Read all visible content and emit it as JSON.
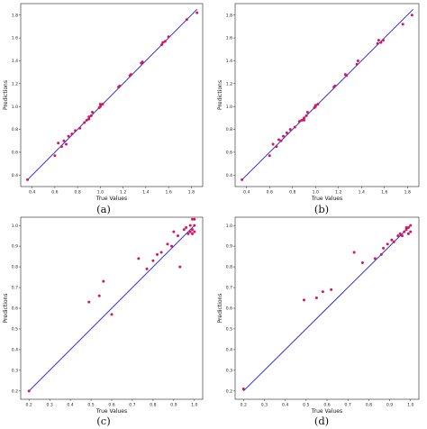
{
  "colors": {
    "line": "#1c1cd9",
    "point": "#d6155f",
    "frame": "#222222"
  },
  "chart_data": [
    {
      "type": "scatter",
      "caption": "(a)",
      "xlabel": "True Values",
      "ylabel": "Predictions",
      "xlim": [
        0.3,
        1.9
      ],
      "ylim": [
        0.3,
        1.9
      ],
      "xticks": [
        "0.4",
        "0.6",
        "0.8",
        "1.0",
        "1.2",
        "1.4",
        "1.6",
        "1.8"
      ],
      "yticks": [
        "0.4",
        "0.6",
        "0.8",
        "1.0",
        "1.2",
        "1.4",
        "1.6",
        "1.8"
      ],
      "xtick_values": [
        0.4,
        0.6,
        0.8,
        1.0,
        1.2,
        1.4,
        1.6,
        1.8
      ],
      "ytick_values": [
        0.4,
        0.6,
        0.8,
        1.0,
        1.2,
        1.4,
        1.6,
        1.8
      ],
      "grid": false,
      "reference_line": [
        [
          0.36,
          0.36
        ],
        [
          1.85,
          1.85
        ]
      ],
      "points": [
        [
          0.36,
          0.36
        ],
        [
          0.6,
          0.57
        ],
        [
          0.63,
          0.68
        ],
        [
          0.66,
          0.65
        ],
        [
          0.68,
          0.7
        ],
        [
          0.7,
          0.67
        ],
        [
          0.72,
          0.74
        ],
        [
          0.75,
          0.76
        ],
        [
          0.78,
          0.79
        ],
        [
          0.82,
          0.81
        ],
        [
          0.86,
          0.86
        ],
        [
          0.88,
          0.88
        ],
        [
          0.9,
          0.89
        ],
        [
          0.9,
          0.91
        ],
        [
          0.92,
          0.92
        ],
        [
          0.93,
          0.95
        ],
        [
          0.99,
          0.99
        ],
        [
          1.0,
          1.0
        ],
        [
          1.0,
          1.02
        ],
        [
          1.02,
          1.02
        ],
        [
          1.16,
          1.17
        ],
        [
          1.17,
          1.18
        ],
        [
          1.26,
          1.27
        ],
        [
          1.27,
          1.28
        ],
        [
          1.36,
          1.38
        ],
        [
          1.37,
          1.39
        ],
        [
          1.54,
          1.54
        ],
        [
          1.55,
          1.56
        ],
        [
          1.57,
          1.57
        ],
        [
          1.6,
          1.61
        ],
        [
          1.76,
          1.76
        ],
        [
          1.85,
          1.82
        ]
      ]
    },
    {
      "type": "scatter",
      "caption": "(b)",
      "xlabel": "True Values",
      "ylabel": "Predictions",
      "xlim": [
        0.3,
        1.9
      ],
      "ylim": [
        0.3,
        1.9
      ],
      "xticks": [
        "0.4",
        "0.6",
        "0.8",
        "1.0",
        "1.2",
        "1.4",
        "1.6",
        "1.8"
      ],
      "yticks": [
        "0.4",
        "0.6",
        "0.8",
        "1.0",
        "1.2",
        "1.4",
        "1.6",
        "1.8"
      ],
      "xtick_values": [
        0.4,
        0.6,
        0.8,
        1.0,
        1.2,
        1.4,
        1.6,
        1.8
      ],
      "ytick_values": [
        0.4,
        0.6,
        0.8,
        1.0,
        1.2,
        1.4,
        1.6,
        1.8
      ],
      "grid": false,
      "reference_line": [
        [
          0.36,
          0.36
        ],
        [
          1.85,
          1.85
        ]
      ],
      "points": [
        [
          0.36,
          0.36
        ],
        [
          0.6,
          0.57
        ],
        [
          0.63,
          0.67
        ],
        [
          0.66,
          0.65
        ],
        [
          0.68,
          0.71
        ],
        [
          0.7,
          0.7
        ],
        [
          0.72,
          0.74
        ],
        [
          0.75,
          0.77
        ],
        [
          0.78,
          0.8
        ],
        [
          0.82,
          0.82
        ],
        [
          0.86,
          0.87
        ],
        [
          0.88,
          0.88
        ],
        [
          0.9,
          0.88
        ],
        [
          0.9,
          0.9
        ],
        [
          0.92,
          0.92
        ],
        [
          0.93,
          0.95
        ],
        [
          0.99,
          0.99
        ],
        [
          1.0,
          1.0
        ],
        [
          1.0,
          1.01
        ],
        [
          1.02,
          1.02
        ],
        [
          1.16,
          1.17
        ],
        [
          1.17,
          1.18
        ],
        [
          1.26,
          1.28
        ],
        [
          1.27,
          1.27
        ],
        [
          1.36,
          1.37
        ],
        [
          1.37,
          1.4
        ],
        [
          1.54,
          1.55
        ],
        [
          1.55,
          1.58
        ],
        [
          1.57,
          1.56
        ],
        [
          1.59,
          1.58
        ],
        [
          1.76,
          1.72
        ],
        [
          1.84,
          1.8
        ]
      ]
    },
    {
      "type": "scatter",
      "caption": "(c)",
      "xlabel": "True Values",
      "ylabel": "Predictions",
      "xlim": [
        0.16,
        1.04
      ],
      "ylim": [
        0.16,
        1.04
      ],
      "xticks": [
        "0.2",
        "0.3",
        "0.4",
        "0.5",
        "0.6",
        "0.7",
        "0.8",
        "0.9",
        "1.0"
      ],
      "yticks": [
        "0.2",
        "0.3",
        "0.4",
        "0.5",
        "0.6",
        "0.7",
        "0.8",
        "0.9",
        "1.0"
      ],
      "xtick_values": [
        0.2,
        0.3,
        0.4,
        0.5,
        0.6,
        0.7,
        0.8,
        0.9,
        1.0
      ],
      "ytick_values": [
        0.2,
        0.3,
        0.4,
        0.5,
        0.6,
        0.7,
        0.8,
        0.9,
        1.0
      ],
      "grid": false,
      "reference_line": [
        [
          0.2,
          0.2
        ],
        [
          1.0,
          1.0
        ]
      ],
      "points": [
        [
          0.2,
          0.2
        ],
        [
          0.49,
          0.63
        ],
        [
          0.54,
          0.66
        ],
        [
          0.56,
          0.73
        ],
        [
          0.6,
          0.57
        ],
        [
          0.73,
          0.84
        ],
        [
          0.77,
          0.79
        ],
        [
          0.8,
          0.83
        ],
        [
          0.82,
          0.86
        ],
        [
          0.84,
          0.87
        ],
        [
          0.87,
          0.91
        ],
        [
          0.89,
          0.9
        ],
        [
          0.9,
          0.97
        ],
        [
          0.92,
          0.95
        ],
        [
          0.93,
          0.8
        ],
        [
          0.95,
          0.98
        ],
        [
          0.96,
          0.99
        ],
        [
          0.97,
          0.96
        ],
        [
          0.98,
          0.97
        ],
        [
          0.98,
          1.0
        ],
        [
          0.99,
          0.96
        ],
        [
          0.99,
          0.98
        ],
        [
          1.0,
          0.97
        ],
        [
          1.0,
          1.0
        ],
        [
          0.99,
          1.03
        ],
        [
          1.0,
          1.03
        ]
      ]
    },
    {
      "type": "scatter",
      "caption": "(d)",
      "xlabel": "True Values",
      "ylabel": "Predictions",
      "xlim": [
        0.16,
        1.04
      ],
      "ylim": [
        0.16,
        1.04
      ],
      "xticks": [
        "0.2",
        "0.3",
        "0.4",
        "0.5",
        "0.6",
        "0.7",
        "0.8",
        "0.9",
        "1.0"
      ],
      "yticks": [
        "0.2",
        "0.3",
        "0.4",
        "0.5",
        "0.6",
        "0.7",
        "0.8",
        "0.9",
        "1.0"
      ],
      "xtick_values": [
        0.2,
        0.3,
        0.4,
        0.5,
        0.6,
        0.7,
        0.8,
        0.9,
        1.0
      ],
      "ytick_values": [
        0.2,
        0.3,
        0.4,
        0.5,
        0.6,
        0.7,
        0.8,
        0.9,
        1.0
      ],
      "grid": false,
      "reference_line": [
        [
          0.2,
          0.2
        ],
        [
          1.0,
          1.0
        ]
      ],
      "points": [
        [
          0.2,
          0.21
        ],
        [
          0.49,
          0.64
        ],
        [
          0.55,
          0.65
        ],
        [
          0.58,
          0.68
        ],
        [
          0.62,
          0.69
        ],
        [
          0.73,
          0.87
        ],
        [
          0.77,
          0.82
        ],
        [
          0.83,
          0.84
        ],
        [
          0.86,
          0.86
        ],
        [
          0.87,
          0.89
        ],
        [
          0.89,
          0.91
        ],
        [
          0.91,
          0.93
        ],
        [
          0.92,
          0.92
        ],
        [
          0.94,
          0.95
        ],
        [
          0.95,
          0.96
        ],
        [
          0.96,
          0.95
        ],
        [
          0.97,
          0.97
        ],
        [
          0.98,
          0.98
        ],
        [
          0.99,
          0.99
        ],
        [
          1.0,
          1.0
        ],
        [
          0.99,
          0.96
        ],
        [
          1.0,
          0.97
        ],
        [
          0.98,
          0.99
        ]
      ]
    }
  ]
}
